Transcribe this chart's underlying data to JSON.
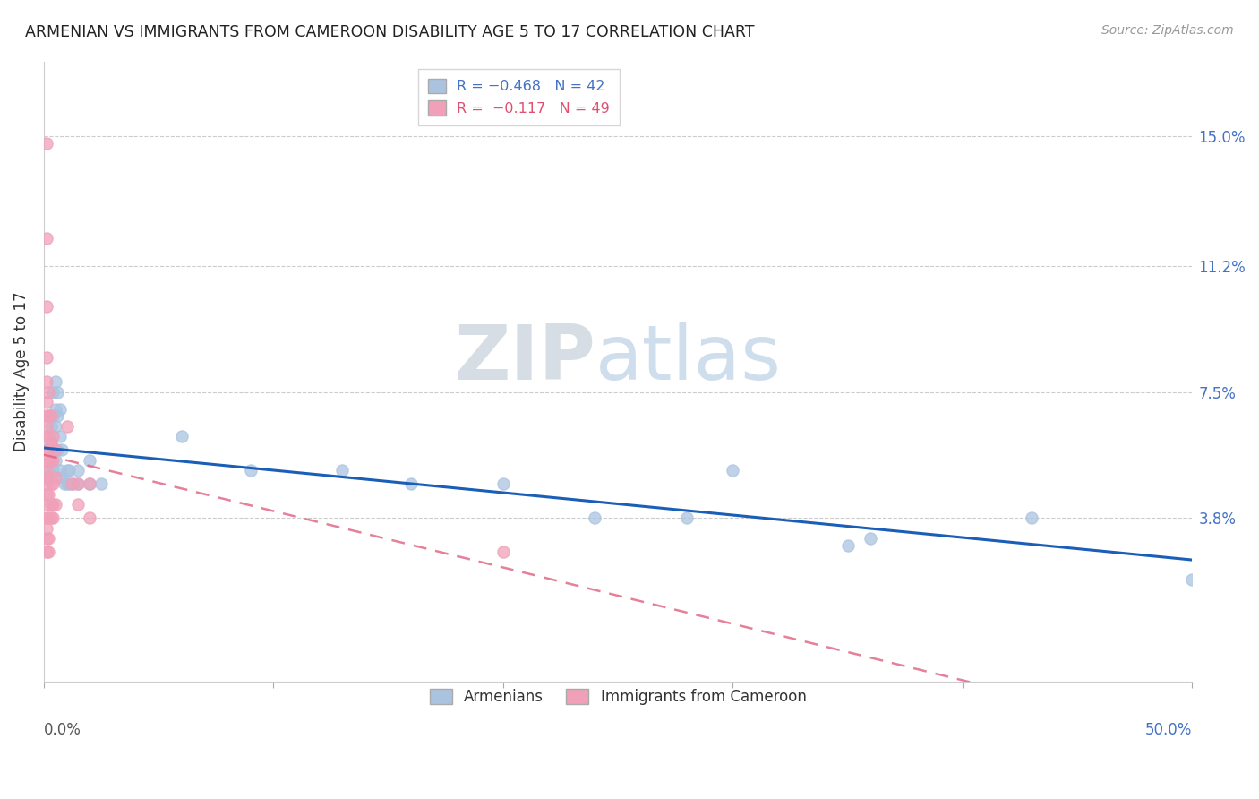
{
  "title": "ARMENIAN VS IMMIGRANTS FROM CAMEROON DISABILITY AGE 5 TO 17 CORRELATION CHART",
  "source": "Source: ZipAtlas.com",
  "ylabel": "Disability Age 5 to 17",
  "ytick_labels": [
    "15.0%",
    "11.2%",
    "7.5%",
    "3.8%"
  ],
  "ytick_values": [
    0.15,
    0.112,
    0.075,
    0.038
  ],
  "xlim": [
    0.0,
    0.5
  ],
  "ylim": [
    -0.01,
    0.172
  ],
  "armenian_color": "#aac4e0",
  "cameroon_color": "#f0a0b8",
  "armenian_line_color": "#1a5eb8",
  "cameroon_line_color": "#e06080",
  "watermark_zip": "ZIP",
  "watermark_atlas": "atlas",
  "armenian_points": [
    [
      0.001,
      0.05
    ],
    [
      0.002,
      0.052
    ],
    [
      0.003,
      0.06
    ],
    [
      0.003,
      0.065
    ],
    [
      0.004,
      0.052
    ],
    [
      0.004,
      0.058
    ],
    [
      0.004,
      0.068
    ],
    [
      0.004,
      0.075
    ],
    [
      0.005,
      0.055
    ],
    [
      0.005,
      0.065
    ],
    [
      0.005,
      0.07
    ],
    [
      0.005,
      0.078
    ],
    [
      0.006,
      0.058
    ],
    [
      0.006,
      0.068
    ],
    [
      0.006,
      0.075
    ],
    [
      0.007,
      0.052
    ],
    [
      0.007,
      0.062
    ],
    [
      0.007,
      0.07
    ],
    [
      0.008,
      0.05
    ],
    [
      0.008,
      0.058
    ],
    [
      0.009,
      0.048
    ],
    [
      0.01,
      0.048
    ],
    [
      0.01,
      0.052
    ],
    [
      0.011,
      0.048
    ],
    [
      0.011,
      0.052
    ],
    [
      0.013,
      0.048
    ],
    [
      0.015,
      0.048
    ],
    [
      0.015,
      0.052
    ],
    [
      0.02,
      0.048
    ],
    [
      0.02,
      0.055
    ],
    [
      0.025,
      0.048
    ],
    [
      0.06,
      0.062
    ],
    [
      0.09,
      0.052
    ],
    [
      0.13,
      0.052
    ],
    [
      0.16,
      0.048
    ],
    [
      0.2,
      0.048
    ],
    [
      0.24,
      0.038
    ],
    [
      0.28,
      0.038
    ],
    [
      0.3,
      0.052
    ],
    [
      0.35,
      0.03
    ],
    [
      0.36,
      0.032
    ],
    [
      0.43,
      0.038
    ],
    [
      0.5,
      0.02
    ]
  ],
  "cameroon_points": [
    [
      0.001,
      0.148
    ],
    [
      0.001,
      0.12
    ],
    [
      0.001,
      0.1
    ],
    [
      0.001,
      0.085
    ],
    [
      0.001,
      0.078
    ],
    [
      0.001,
      0.072
    ],
    [
      0.001,
      0.068
    ],
    [
      0.001,
      0.065
    ],
    [
      0.001,
      0.062
    ],
    [
      0.001,
      0.058
    ],
    [
      0.001,
      0.055
    ],
    [
      0.001,
      0.052
    ],
    [
      0.001,
      0.048
    ],
    [
      0.001,
      0.045
    ],
    [
      0.001,
      0.042
    ],
    [
      0.001,
      0.038
    ],
    [
      0.001,
      0.035
    ],
    [
      0.001,
      0.032
    ],
    [
      0.001,
      0.028
    ],
    [
      0.002,
      0.075
    ],
    [
      0.002,
      0.068
    ],
    [
      0.002,
      0.062
    ],
    [
      0.002,
      0.058
    ],
    [
      0.002,
      0.055
    ],
    [
      0.002,
      0.05
    ],
    [
      0.002,
      0.045
    ],
    [
      0.002,
      0.038
    ],
    [
      0.002,
      0.032
    ],
    [
      0.002,
      0.028
    ],
    [
      0.003,
      0.068
    ],
    [
      0.003,
      0.06
    ],
    [
      0.003,
      0.055
    ],
    [
      0.003,
      0.048
    ],
    [
      0.003,
      0.042
    ],
    [
      0.003,
      0.038
    ],
    [
      0.004,
      0.062
    ],
    [
      0.004,
      0.055
    ],
    [
      0.004,
      0.048
    ],
    [
      0.004,
      0.042
    ],
    [
      0.004,
      0.038
    ],
    [
      0.005,
      0.058
    ],
    [
      0.005,
      0.05
    ],
    [
      0.005,
      0.042
    ],
    [
      0.01,
      0.065
    ],
    [
      0.012,
      0.048
    ],
    [
      0.015,
      0.048
    ],
    [
      0.015,
      0.042
    ],
    [
      0.02,
      0.048
    ],
    [
      0.02,
      0.038
    ],
    [
      0.2,
      0.028
    ]
  ],
  "armenian_line": {
    "x0": 0.0,
    "y0": 0.052,
    "x1": 0.5,
    "y1": 0.018
  },
  "cameroon_line": {
    "x0": 0.0,
    "y0": 0.05,
    "x1": 0.5,
    "y1": 0.018
  }
}
